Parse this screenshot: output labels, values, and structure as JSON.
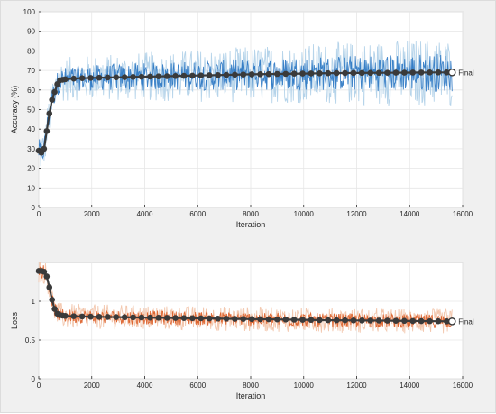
{
  "chart_data": [
    {
      "type": "line",
      "xlabel": "Iteration",
      "ylabel": "Accuracy (%)",
      "xlim": [
        0,
        16000
      ],
      "ylim": [
        0,
        100
      ],
      "x_ticks": [
        0,
        2000,
        4000,
        6000,
        8000,
        10000,
        12000,
        14000,
        16000
      ],
      "y_ticks": [
        0,
        10,
        20,
        30,
        40,
        50,
        60,
        70,
        80,
        90,
        100
      ],
      "grid": true,
      "final_label": "Final",
      "colors": {
        "raw": "#aecfe8",
        "smoothed": "#1f6fc0",
        "markers": "#3a3a3a"
      },
      "final_value": 69,
      "series": [
        {
          "role": "smoothed-trend",
          "x": [
            0,
            100,
            200,
            300,
            400,
            500,
            600,
            700,
            800,
            1000,
            1500,
            2000,
            3000,
            4000,
            5000,
            6000,
            7000,
            8000,
            9000,
            10000,
            11000,
            12000,
            13000,
            14000,
            15000,
            15600
          ],
          "y": [
            29,
            28,
            30,
            39,
            48,
            55,
            59,
            63,
            65,
            65.5,
            66,
            66.2,
            66.5,
            66.8,
            67.1,
            67.4,
            67.7,
            68,
            68.2,
            68.4,
            68.6,
            68.7,
            68.8,
            68.9,
            69,
            69
          ]
        }
      ]
    },
    {
      "type": "line",
      "xlabel": "Iteration",
      "ylabel": "Loss",
      "xlim": [
        0,
        16000
      ],
      "ylim": [
        0,
        1.5
      ],
      "x_ticks": [
        0,
        2000,
        4000,
        6000,
        8000,
        10000,
        12000,
        14000,
        16000
      ],
      "y_ticks": [
        0,
        0.5,
        1
      ],
      "grid": true,
      "final_label": "Final",
      "colors": {
        "raw": "#f2c2a6",
        "smoothed": "#d95319",
        "markers": "#3a3a3a"
      },
      "final_value": 0.74,
      "series": [
        {
          "role": "smoothed-trend",
          "x": [
            0,
            100,
            200,
            300,
            400,
            500,
            600,
            700,
            800,
            1000,
            1500,
            2000,
            3000,
            4000,
            5000,
            6000,
            7000,
            8000,
            9000,
            10000,
            11000,
            12000,
            13000,
            14000,
            15000,
            15600
          ],
          "y": [
            1.39,
            1.39,
            1.38,
            1.32,
            1.18,
            1.02,
            0.9,
            0.84,
            0.82,
            0.81,
            0.805,
            0.8,
            0.795,
            0.79,
            0.785,
            0.78,
            0.775,
            0.77,
            0.765,
            0.76,
            0.755,
            0.752,
            0.75,
            0.745,
            0.742,
            0.74
          ]
        }
      ]
    }
  ]
}
